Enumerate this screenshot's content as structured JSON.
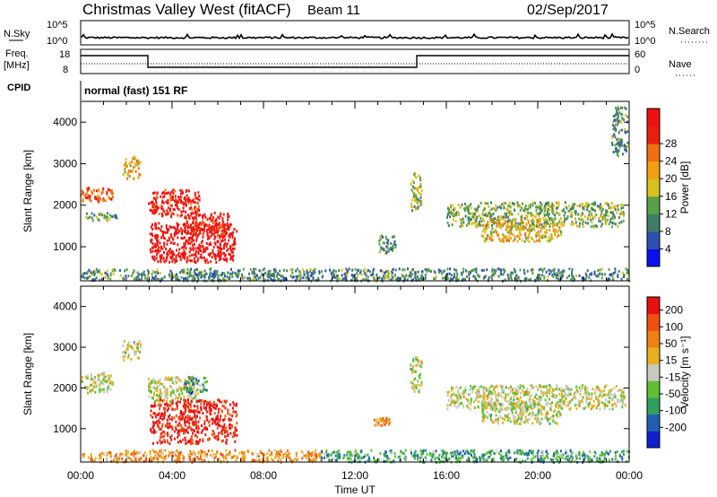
{
  "header": {
    "station": "Christmas Valley West (fitACF)",
    "beam": "Beam 11",
    "date": "02/Sep/2017"
  },
  "top_panels": {
    "nsky_label": "N.Sky",
    "nsky_ticks": [
      "10^5",
      "10^0"
    ],
    "nsearch_label": "N.Search",
    "nsearch_ticks": [
      "10^5",
      "10^0"
    ],
    "freq_label_1": "Freq.",
    "freq_label_2": "[MHz]",
    "freq_ticks": [
      "18",
      "8"
    ],
    "nave_label": "Nave",
    "nave_ticks": [
      "60",
      "0"
    ],
    "cpid_label": "CPID",
    "cpid_value": "normal (fast) 151 RF"
  },
  "chart_data": [
    {
      "type": "heatmap",
      "name": "power",
      "ylabel": "Slant Range [km]",
      "xlabel": "Time UT",
      "x_ticks": [
        "00:00",
        "04:00",
        "08:00",
        "12:00",
        "16:00",
        "20:00",
        "00:00"
      ],
      "y_ticks": [
        "1000",
        "2000",
        "3000",
        "4000"
      ],
      "ylim": [
        180,
        4500
      ],
      "xlim": [
        0,
        24
      ],
      "colorbar": {
        "label": "Power [dB]",
        "tick_labels": [
          "4",
          "8",
          "12",
          "16",
          "20",
          "24",
          "28"
        ],
        "colors": [
          "#0a10f0",
          "#2e4fb0",
          "#3f7d6a",
          "#5aa04a",
          "#d8c020",
          "#f0a010",
          "#f07010",
          "#e82010",
          "#f01010"
        ]
      },
      "regions": [
        {
          "t0": 0.0,
          "t1": 1.4,
          "r0": 2100,
          "r1": 2450,
          "level": 0.75
        },
        {
          "t0": 0.2,
          "t1": 1.6,
          "r0": 1650,
          "r1": 1850,
          "level": 0.35
        },
        {
          "t0": 1.8,
          "t1": 2.6,
          "r0": 2650,
          "r1": 3200,
          "level": 0.6
        },
        {
          "t0": 2.9,
          "t1": 5.2,
          "r0": 1750,
          "r1": 2400,
          "level": 0.9
        },
        {
          "t0": 3.0,
          "t1": 6.8,
          "r0": 650,
          "r1": 1600,
          "level": 0.95
        },
        {
          "t0": 4.5,
          "t1": 6.5,
          "r0": 1300,
          "r1": 1850,
          "level": 0.9
        },
        {
          "t0": 13.0,
          "t1": 13.8,
          "r0": 850,
          "r1": 1300,
          "level": 0.3
        },
        {
          "t0": 14.4,
          "t1": 14.9,
          "r0": 1900,
          "r1": 2800,
          "level": 0.45
        },
        {
          "t0": 16.0,
          "t1": 23.8,
          "r0": 1500,
          "r1": 2100,
          "level": 0.4
        },
        {
          "t0": 17.5,
          "t1": 21.0,
          "r0": 1150,
          "r1": 1700,
          "level": 0.55
        },
        {
          "t0": 23.2,
          "t1": 23.9,
          "r0": 3200,
          "r1": 4400,
          "level": 0.3
        },
        {
          "t0": 0.0,
          "t1": 24.0,
          "r0": 200,
          "r1": 500,
          "level": 0.3
        }
      ]
    },
    {
      "type": "heatmap",
      "name": "velocity",
      "ylabel": "Slant Range [km]",
      "xlabel": "Time UT",
      "x_ticks": [
        "00:00",
        "04:00",
        "08:00",
        "12:00",
        "16:00",
        "20:00",
        "00:00"
      ],
      "y_ticks": [
        "1000",
        "2000",
        "3000",
        "4000"
      ],
      "ylim": [
        180,
        4500
      ],
      "xlim": [
        0,
        24
      ],
      "colorbar": {
        "label": "Velocity [m s⁻¹]",
        "tick_labels": [
          "200",
          "100",
          "50",
          "15",
          "-15",
          "-50",
          "-100",
          "-200"
        ],
        "colors": [
          "#1020d0",
          "#2060b0",
          "#30a060",
          "#60c030",
          "#c8c8c0",
          "#e8b020",
          "#f08010",
          "#f05010",
          "#e81010"
        ]
      },
      "regions": [
        {
          "t0": 0.0,
          "t1": 1.4,
          "r0": 1900,
          "r1": 2400,
          "level": 0.5
        },
        {
          "t0": 1.8,
          "t1": 2.6,
          "r0": 2700,
          "r1": 3200,
          "level": 0.5
        },
        {
          "t0": 2.9,
          "t1": 5.2,
          "r0": 1650,
          "r1": 2300,
          "level": 0.5
        },
        {
          "t0": 4.5,
          "t1": 5.5,
          "r0": 1900,
          "r1": 2300,
          "level": 0.25
        },
        {
          "t0": 3.0,
          "t1": 6.8,
          "r0": 650,
          "r1": 1750,
          "level": 0.95
        },
        {
          "t0": 12.8,
          "t1": 13.5,
          "r0": 1100,
          "r1": 1300,
          "level": 0.7
        },
        {
          "t0": 14.4,
          "t1": 14.9,
          "r0": 1900,
          "r1": 2800,
          "level": 0.5
        },
        {
          "t0": 16.0,
          "t1": 23.8,
          "r0": 1500,
          "r1": 2100,
          "level": 0.5
        },
        {
          "t0": 17.5,
          "t1": 21.0,
          "r0": 1150,
          "r1": 1700,
          "level": 0.5
        },
        {
          "t0": 0.0,
          "t1": 10.5,
          "r0": 200,
          "r1": 500,
          "level": 0.7
        },
        {
          "t0": 10.5,
          "t1": 24.0,
          "r0": 200,
          "r1": 500,
          "level": 0.3
        }
      ]
    }
  ]
}
